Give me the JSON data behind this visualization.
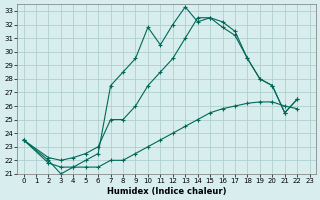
{
  "xlabel": "Humidex (Indice chaleur)",
  "bg_color": "#d8eeee",
  "grid_color": "#aacaca",
  "line_color": "#006858",
  "xlim": [
    -0.5,
    23.5
  ],
  "ylim": [
    21,
    33.5
  ],
  "yticks": [
    21,
    22,
    23,
    24,
    25,
    26,
    27,
    28,
    29,
    30,
    31,
    32,
    33
  ],
  "xticks": [
    0,
    1,
    2,
    3,
    4,
    5,
    6,
    7,
    8,
    9,
    10,
    11,
    12,
    13,
    14,
    15,
    16,
    17,
    18,
    19,
    20,
    21,
    22,
    23
  ],
  "curve1_x": [
    0,
    2,
    3,
    4,
    5,
    6,
    7,
    8,
    9,
    10,
    11,
    12,
    13,
    14,
    15,
    16,
    17,
    18,
    19,
    20,
    21,
    22
  ],
  "curve1_y": [
    23.5,
    22.0,
    21.0,
    21.5,
    22.0,
    22.5,
    27.5,
    28.5,
    29.5,
    31.8,
    30.5,
    32.0,
    33.3,
    32.2,
    32.5,
    31.8,
    31.2,
    29.5,
    28.0,
    27.5,
    25.5,
    26.5
  ],
  "curve2_x": [
    0,
    2,
    3,
    4,
    5,
    6,
    7,
    8,
    9,
    10,
    11,
    12,
    13,
    14,
    15,
    16,
    17,
    18,
    19,
    20,
    21,
    22
  ],
  "curve2_y": [
    23.5,
    22.2,
    22.0,
    22.2,
    22.5,
    23.0,
    25.0,
    25.0,
    26.0,
    27.5,
    28.5,
    29.5,
    31.0,
    32.5,
    32.5,
    32.2,
    31.5,
    29.5,
    28.0,
    27.5,
    25.5,
    26.5
  ],
  "curve3_x": [
    0,
    2,
    3,
    4,
    5,
    6,
    7,
    8,
    9,
    10,
    11,
    12,
    13,
    14,
    15,
    16,
    17,
    18,
    19,
    20,
    21,
    22
  ],
  "curve3_y": [
    23.5,
    21.8,
    21.5,
    21.5,
    21.5,
    21.5,
    22.0,
    22.0,
    22.5,
    23.0,
    23.5,
    24.0,
    24.5,
    25.0,
    25.5,
    25.8,
    26.0,
    26.2,
    26.3,
    26.3,
    26.0,
    25.8
  ]
}
